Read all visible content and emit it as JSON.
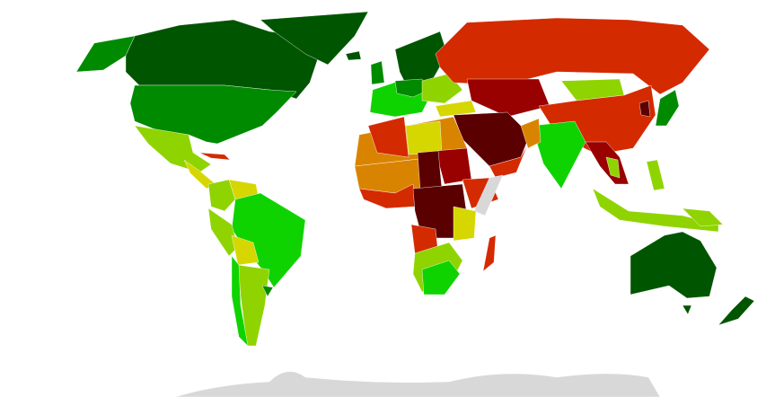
{
  "map": {
    "projection": "robinson",
    "colors": {
      "full_democracy_high": "#005500",
      "full_democracy": "#008a00",
      "flawed_high": "#0fd300",
      "flawed": "#8fd400",
      "hybrid_high": "#d6d600",
      "hybrid": "#d98400",
      "authoritarian": "#d42a00",
      "authoritarian_low": "#990000",
      "authoritarian_lowest": "#5a0000",
      "no_data": "#d8d8d8",
      "outline": "#c8c8c8"
    }
  }
}
